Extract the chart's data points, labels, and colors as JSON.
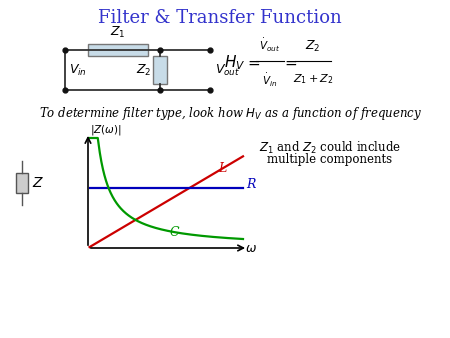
{
  "title": "Filter & Transfer Function",
  "title_color": "#3333cc",
  "title_fontsize": 13,
  "bg_color": "#ffffff",
  "circuit_box_color": "#c8dce8",
  "circuit_box_edge": "#777777",
  "text_color": "#000000",
  "sentence": "To determine filter type, look how $H_V$ as a function of frequency",
  "note_line1": "$Z_1$ and $Z_2$ could include",
  "note_line2": "multiple components",
  "label_L": "L",
  "label_R": "R",
  "label_C": "C",
  "color_L": "#cc0000",
  "color_R": "#0000bb",
  "color_C": "#009900",
  "wire_color": "#333333",
  "dot_color": "#111111"
}
